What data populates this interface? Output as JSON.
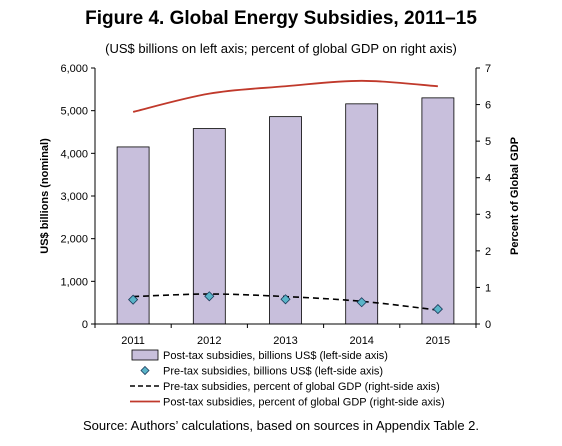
{
  "title": "Figure 4. Global Energy Subsidies, 2011–15",
  "subtitle": "(US$ billions on left axis; percent of global GDP on right axis)",
  "source": "Source: Authors’ calculations, based on sources in Appendix Table 2.",
  "chart_data": {
    "type": "bar",
    "categories": [
      "2011",
      "2012",
      "2013",
      "2014",
      "2015"
    ],
    "ylabel": "US$ billions (nominal)",
    "y2label": "Percent of Global GDP",
    "ylim": [
      0,
      6000
    ],
    "y2lim": [
      0,
      7
    ],
    "yticks": [
      "0",
      "1,000",
      "2,000",
      "3,000",
      "4,000",
      "5,000",
      "6,000"
    ],
    "y2ticks": [
      "0",
      "1",
      "2",
      "3",
      "4",
      "5",
      "6",
      "7"
    ],
    "grid": false,
    "legend_position": "bottom",
    "series": [
      {
        "name": "Post-tax subsidies, billions US$ (left-side axis)",
        "type": "bar",
        "axis": "left",
        "color": "#c8bfdc",
        "values": [
          4150,
          4580,
          4860,
          5160,
          5300
        ]
      },
      {
        "name": "Pre-tax subsidies, billions US$ (left-side axis)",
        "type": "marker",
        "axis": "left",
        "color": "#5ab4c8",
        "values": [
          570,
          650,
          580,
          510,
          350
        ]
      },
      {
        "name": "Pre-tax subsidies, percent of global GDP (right-side axis)",
        "type": "line",
        "style": "dashed",
        "axis": "right",
        "color": "#000000",
        "values": [
          0.75,
          0.82,
          0.75,
          0.62,
          0.38
        ]
      },
      {
        "name": "Post-tax subsidies, percent of global GDP (right-side axis)",
        "type": "line",
        "style": "solid",
        "axis": "right",
        "color": "#c0392b",
        "values": [
          5.8,
          6.3,
          6.5,
          6.65,
          6.5
        ]
      }
    ]
  }
}
